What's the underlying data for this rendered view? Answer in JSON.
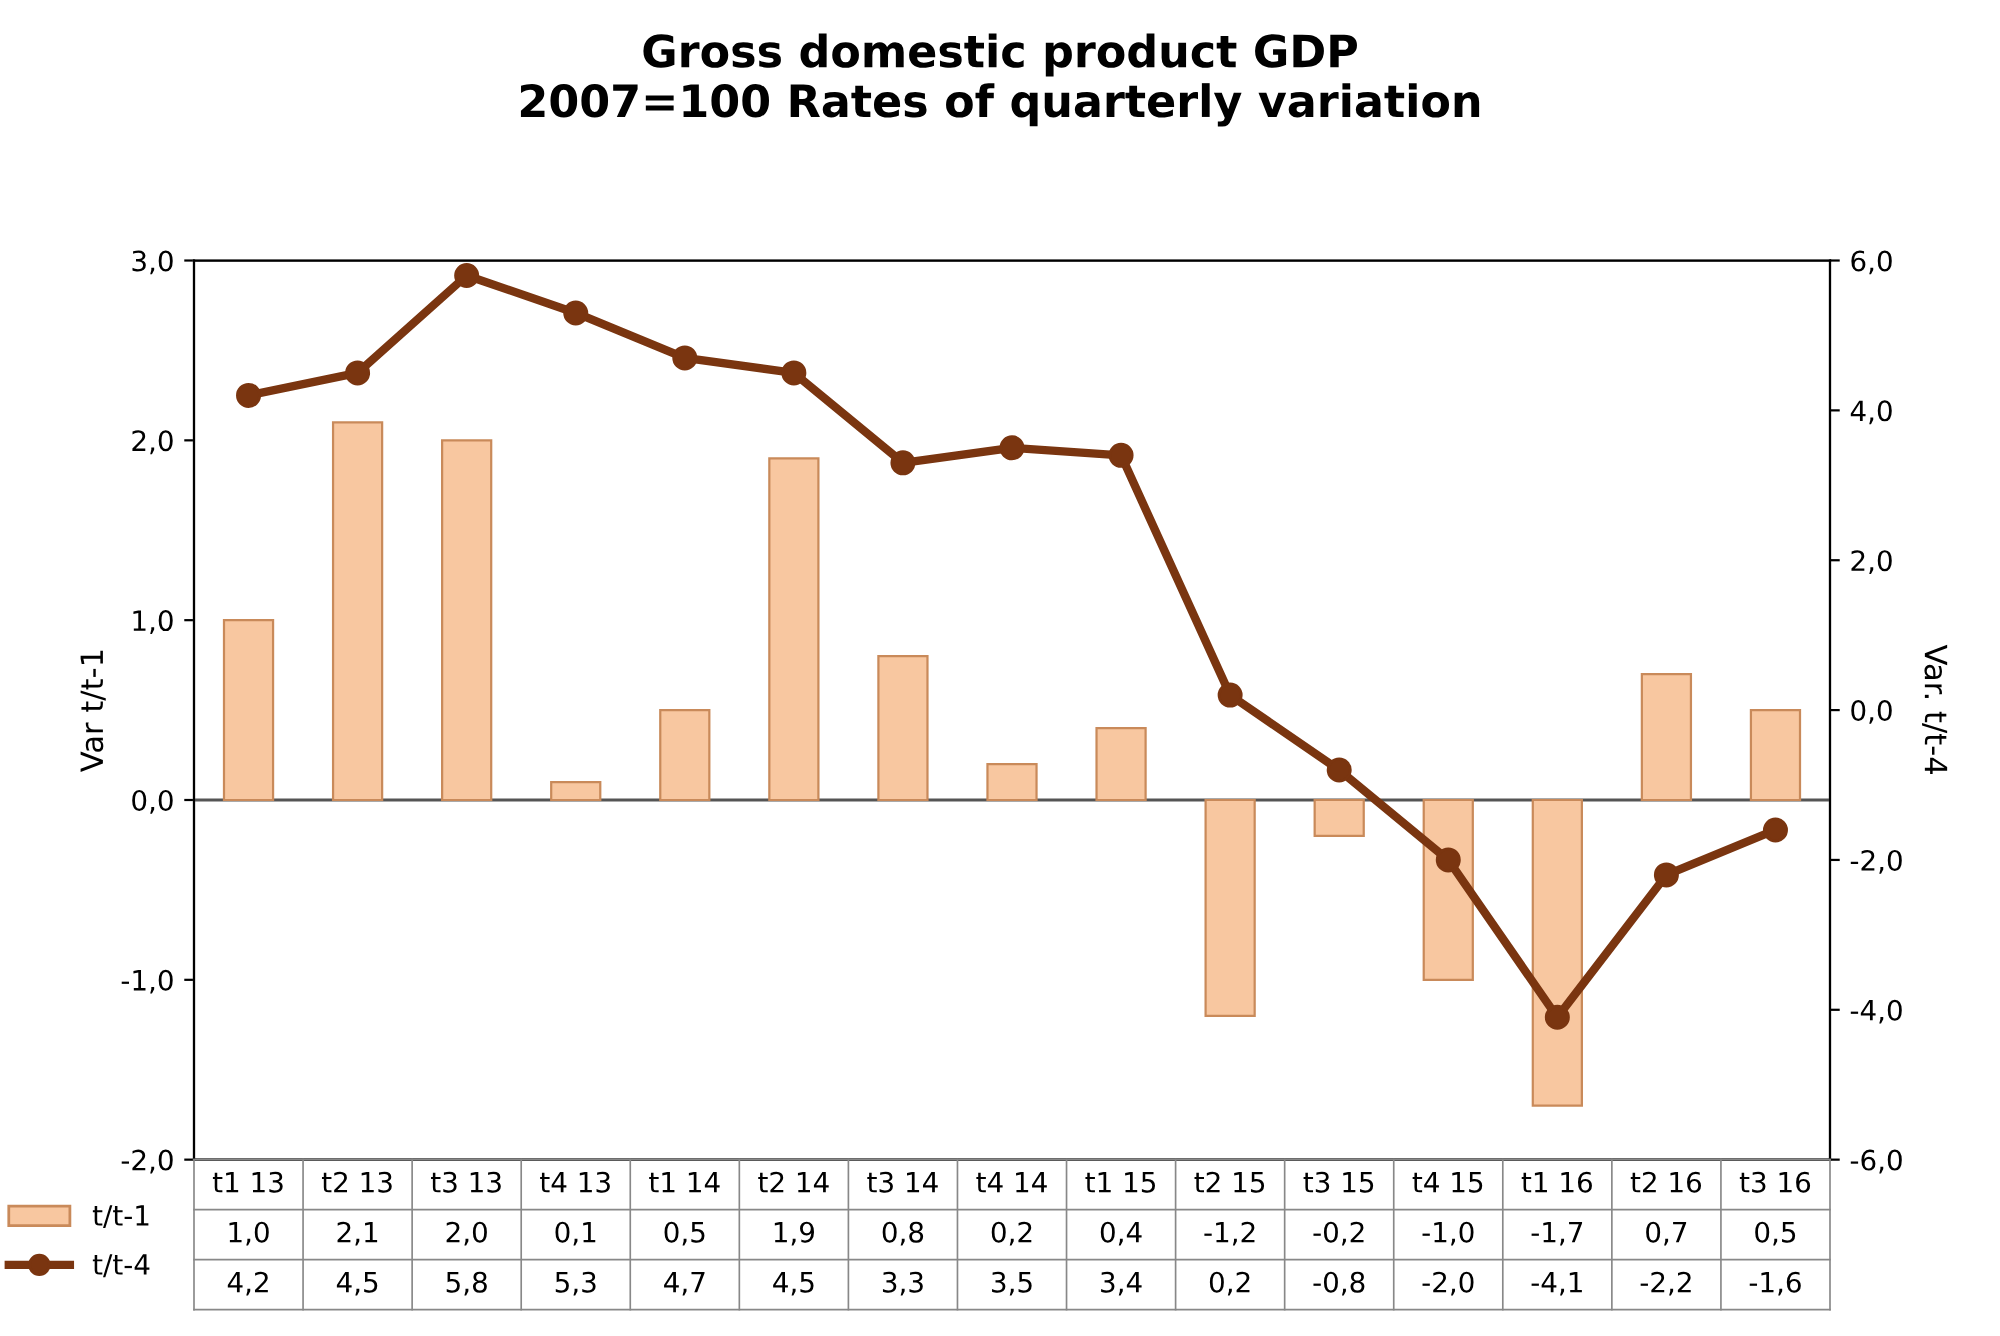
{
  "chart_data": {
    "type": "bar",
    "title": "Gross domestic product GDP\n2007=100 Rates of quarterly variation",
    "ylabel": "Var t/t-1",
    "y2label": "Var. t/t-4",
    "categories": [
      "t1 13",
      "t2 13",
      "t3 13",
      "t4 13",
      "t1 14",
      "t2 14",
      "t3 14",
      "t4 14",
      "t1 15",
      "t2 15",
      "t3 15",
      "t4 15",
      "t1 16",
      "t2 16",
      "t3 16"
    ],
    "series": [
      {
        "name": "t/t-1",
        "color": "#f8c7a0",
        "values": [
          1.0,
          2.1,
          2.0,
          0.1,
          0.5,
          1.9,
          0.8,
          0.2,
          0.4,
          -1.2,
          -0.2,
          -1.0,
          -1.7,
          0.7,
          0.5
        ],
        "value_labels": [
          "1,0",
          "2,1",
          "2,0",
          "0,1",
          "0,5",
          "1,9",
          "0,8",
          "0,2",
          "0,4",
          "-1,2",
          "-0,2",
          "-1,0",
          "-1,7",
          "0,7",
          "0,5"
        ]
      },
      {
        "name": "t/t-4",
        "type": "line",
        "axis": "y2",
        "color": "#7a3510",
        "marker": "circle",
        "values": [
          4.2,
          4.5,
          5.8,
          5.3,
          4.7,
          4.5,
          3.3,
          3.5,
          3.4,
          0.2,
          -0.8,
          -2.0,
          -4.1,
          -2.2,
          -1.6
        ],
        "value_labels": [
          "4,2",
          "4,5",
          "5,8",
          "5,3",
          "4,7",
          "4,5",
          "3,3",
          "3,5",
          "3,4",
          "0,2",
          "-0,8",
          "-2,0",
          "-4,1",
          "-2,2",
          "-1,6"
        ]
      }
    ],
    "ylim": [
      -2,
      3
    ],
    "yticks": [
      {
        "value": -2,
        "label": "-2,0"
      },
      {
        "value": -1,
        "label": "-1,0"
      },
      {
        "value": 0,
        "label": "0,0"
      },
      {
        "value": 1,
        "label": "1,0"
      },
      {
        "value": 2,
        "label": "2,0"
      },
      {
        "value": 3,
        "label": "3,0"
      }
    ],
    "y2lim": [
      -6,
      6
    ],
    "y2ticks": [
      {
        "value": -6,
        "label": "-6,0"
      },
      {
        "value": -4,
        "label": "-4,0"
      },
      {
        "value": -2,
        "label": "-2,0"
      },
      {
        "value": 0,
        "label": "0,0"
      },
      {
        "value": 2,
        "label": "2,0"
      },
      {
        "value": 4,
        "label": "4,0"
      },
      {
        "value": 6,
        "label": "6,0"
      }
    ],
    "ref_lines": [
      {
        "axis": "y",
        "value": 0,
        "color": "#555555"
      }
    ],
    "legend": "bottom left"
  }
}
